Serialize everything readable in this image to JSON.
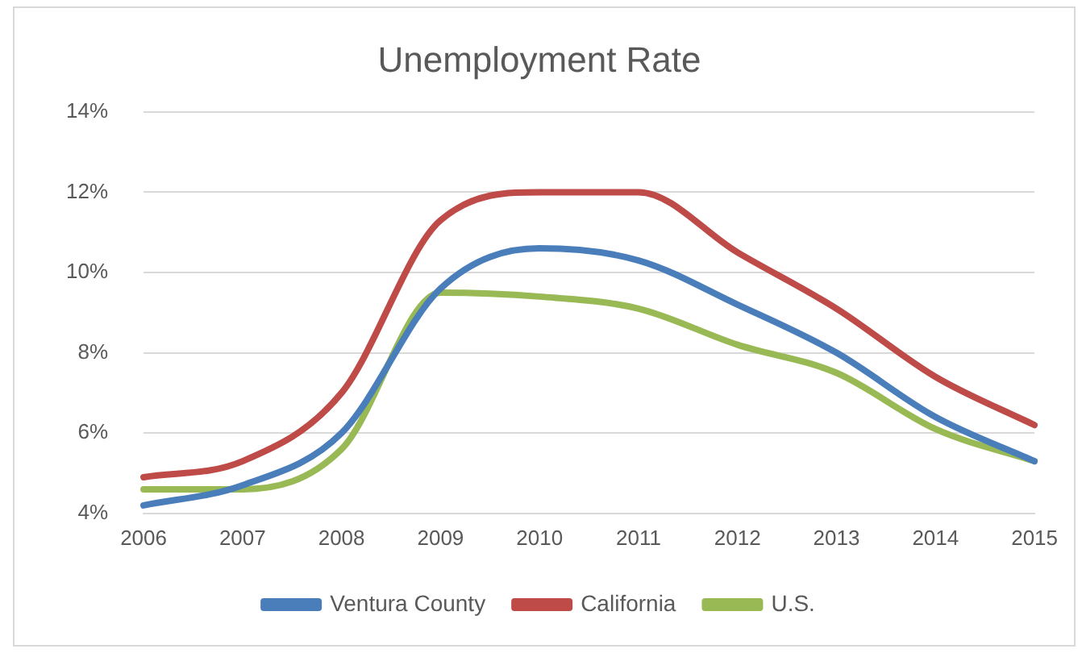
{
  "chart_data": {
    "type": "line",
    "title": "Unemployment Rate",
    "categories": [
      "2006",
      "2007",
      "2008",
      "2009",
      "2010",
      "2011",
      "2012",
      "2013",
      "2014",
      "2015"
    ],
    "series": [
      {
        "name": "Ventura County",
        "color": "#4a7ebb",
        "values": [
          4.2,
          4.7,
          6.0,
          9.6,
          10.6,
          10.3,
          9.2,
          8.0,
          6.4,
          5.3
        ]
      },
      {
        "name": "California",
        "color": "#be4b48",
        "values": [
          4.9,
          5.3,
          7.0,
          11.3,
          12.0,
          12.0,
          10.5,
          9.1,
          7.4,
          6.2
        ]
      },
      {
        "name": "U.S.",
        "color": "#98b954",
        "values": [
          4.6,
          4.6,
          5.6,
          9.5,
          9.4,
          9.1,
          8.2,
          7.5,
          6.1,
          5.3
        ]
      }
    ],
    "ylim": [
      4,
      14
    ],
    "yticks": [
      {
        "value": 4,
        "label": "4%"
      },
      {
        "value": 6,
        "label": "6%"
      },
      {
        "value": 8,
        "label": "8%"
      },
      {
        "value": 10,
        "label": "10%"
      },
      {
        "value": 12,
        "label": "12%"
      },
      {
        "value": 14,
        "label": "14%"
      }
    ],
    "grid": "y",
    "legend": "bottom",
    "marker": "none",
    "line_style": "solid"
  }
}
